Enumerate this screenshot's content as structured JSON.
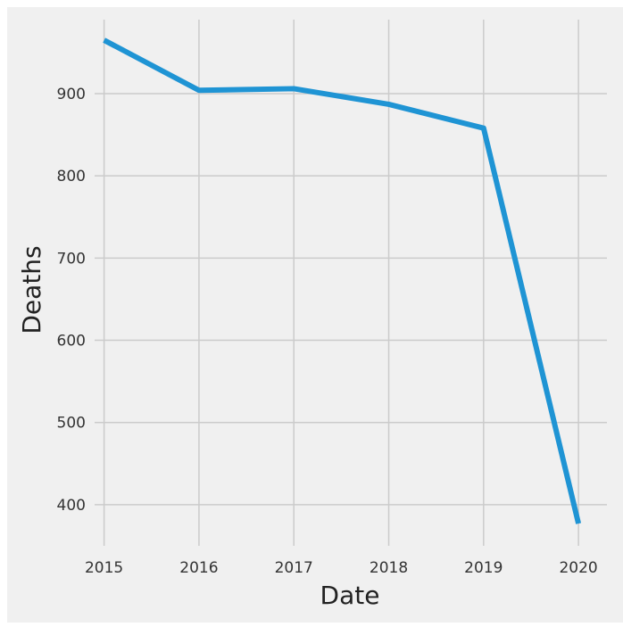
{
  "chart_data": {
    "type": "line",
    "title": "",
    "xlabel": "Date",
    "ylabel": "Deaths",
    "x": [
      2015,
      2016,
      2017,
      2018,
      2019,
      2020
    ],
    "x_tick_labels": [
      "2015",
      "2016",
      "2017",
      "2018",
      "2019",
      "2020"
    ],
    "y_ticks": [
      400,
      500,
      600,
      700,
      800,
      900
    ],
    "y_tick_labels": [
      "400",
      "500",
      "600",
      "700",
      "800",
      "900"
    ],
    "series": [
      {
        "values": [
          965,
          904,
          906,
          887,
          858,
          377
        ]
      }
    ],
    "xlim": [
      2014.9,
      2020.3
    ],
    "ylim": [
      350,
      990
    ],
    "grid": true,
    "legend": "none",
    "colors": {
      "line": "#1f94d4",
      "grid": "#cbcbcb",
      "background": "#f0f0f0",
      "tick_text": "#333333",
      "label_text": "#222222"
    }
  }
}
